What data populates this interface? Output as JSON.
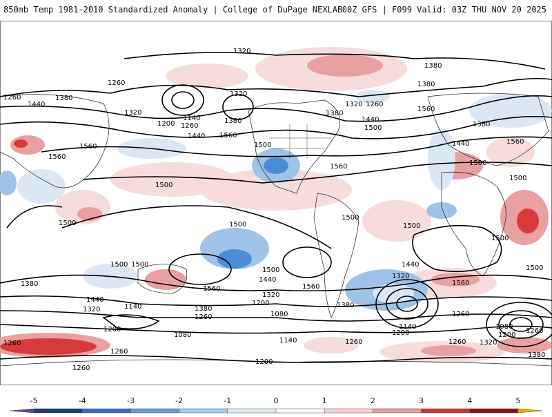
{
  "header": {
    "title_left": "850mb Temp 1981-2010 Standardized Anomaly | College of DuPage NEXLAB",
    "title_right": "00Z GFS | F099 Valid: 03Z THU NOV 20 2025"
  },
  "map": {
    "contour_labels": [
      "1320",
      "1260",
      "1380",
      "1440",
      "1320",
      "1380",
      "1200",
      "1260",
      "1140",
      "1320",
      "1380",
      "1500",
      "1560",
      "1440",
      "1560",
      "1500",
      "1560",
      "1500",
      "1560",
      "1320",
      "1260",
      "1380",
      "1500",
      "1440",
      "1380",
      "1320",
      "1560",
      "1440",
      "1380",
      "1500",
      "1500",
      "1560",
      "1500",
      "1500",
      "1500",
      "1500",
      "1500",
      "1500",
      "1500",
      "1500",
      "1500",
      "1380",
      "1440",
      "1140",
      "1320",
      "1380",
      "1260",
      "1200",
      "1080",
      "1560",
      "1440",
      "1320",
      "1200",
      "1080",
      "1140",
      "1380",
      "1260",
      "1200",
      "1260",
      "1320",
      "1380",
      "1140",
      "1080",
      "1200",
      "1380",
      "1440",
      "1320",
      "1560",
      "1260",
      "1200",
      "1080",
      "1260",
      "1260",
      "1320",
      "1260",
      "1380",
      "1200",
      "1260",
      "1500"
    ],
    "colors": {
      "contour": "#000000",
      "coast": "#333333",
      "warm_light": "#f7dcdc",
      "warm_mid": "#e9a0a0",
      "warm_strong": "#d63a3a",
      "warm_extreme": "#9c1010",
      "cold_light": "#dbe7f5",
      "cold_mid": "#9fc3e6",
      "cold_strong": "#4a8fd6",
      "cold_extreme": "#1f4f9c"
    }
  },
  "colorbar": {
    "ticks": [
      "-5",
      "-4",
      "-3",
      "-2",
      "-1",
      "0",
      "1",
      "2",
      "3",
      "4",
      "5"
    ],
    "min": -5.5,
    "max": 5.5,
    "bins": [
      {
        "from": -5.5,
        "to": -5,
        "color": "#6a3fa0"
      },
      {
        "from": -5,
        "to": -4,
        "color": "#1e3a78"
      },
      {
        "from": -4,
        "to": -3,
        "color": "#2f6fc0"
      },
      {
        "from": -3,
        "to": -2,
        "color": "#5f9dd8"
      },
      {
        "from": -2,
        "to": -1,
        "color": "#a9c9ea"
      },
      {
        "from": -1,
        "to": 0,
        "color": "#dfeaf6"
      },
      {
        "from": 0,
        "to": 1,
        "color": "#ffffff"
      },
      {
        "from": 1,
        "to": 2,
        "color": "#f4d2d2"
      },
      {
        "from": 2,
        "to": 3,
        "color": "#e29a9a"
      },
      {
        "from": 3,
        "to": 4,
        "color": "#cc3333"
      },
      {
        "from": 4,
        "to": 5,
        "color": "#8e0f0f"
      },
      {
        "from": 5,
        "to": 5.5,
        "color": "#f2a900"
      }
    ]
  }
}
